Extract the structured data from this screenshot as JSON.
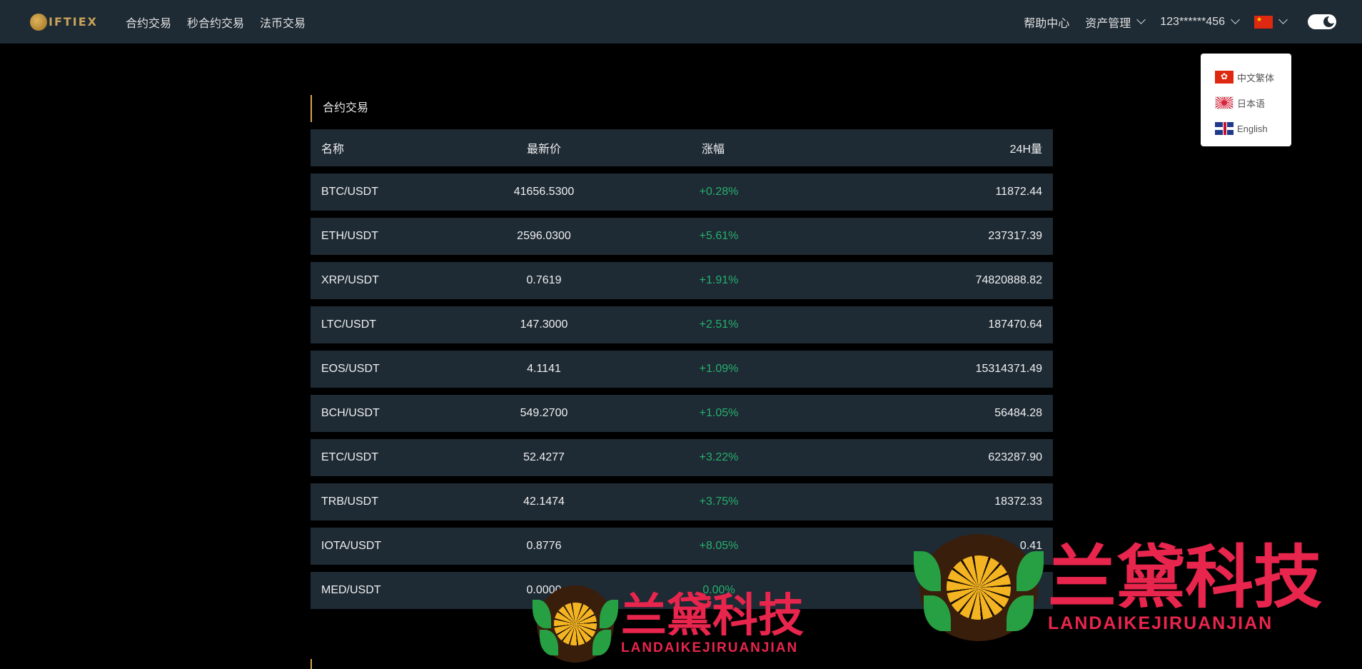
{
  "nav": {
    "logo_text": "IFTIEX",
    "links": [
      "合约交易",
      "秒合约交易",
      "法币交易"
    ],
    "help": "帮助中心",
    "assets": "资产管理",
    "account": "123******456"
  },
  "lang_menu": {
    "items": [
      "中文繁体",
      "日本语",
      "English"
    ]
  },
  "section": {
    "title": "合约交易"
  },
  "table": {
    "headers": [
      "名称",
      "最新价",
      "涨幅",
      "24H量"
    ],
    "rows": [
      [
        "BTC/USDT",
        "41656.5300",
        "+0.28%",
        "11872.44"
      ],
      [
        "ETH/USDT",
        "2596.0300",
        "+5.61%",
        "237317.39"
      ],
      [
        "XRP/USDT",
        "0.7619",
        "+1.91%",
        "74820888.82"
      ],
      [
        "LTC/USDT",
        "147.3000",
        "+2.51%",
        "187470.64"
      ],
      [
        "EOS/USDT",
        "4.1141",
        "+1.09%",
        "15314371.49"
      ],
      [
        "BCH/USDT",
        "549.2700",
        "+1.05%",
        "56484.28"
      ],
      [
        "ETC/USDT",
        "52.4277",
        "+3.22%",
        "623287.90"
      ],
      [
        "TRB/USDT",
        "42.1474",
        "+3.75%",
        "18372.33"
      ],
      [
        "IOTA/USDT",
        "0.8776",
        "+8.05%",
        "3628__0.41"
      ],
      [
        "MED/USDT",
        "0.0000",
        "0.00%",
        ""
      ]
    ]
  },
  "watermark": {
    "cn": "兰黛科技",
    "en": "LANDAIKEJIRUANJIAN"
  },
  "colors": {
    "navbar_bg": "#1e2a34",
    "row_bg": "#1e2a34",
    "positive": "#27b06e",
    "accent": "#d8a24a",
    "watermark": "#e8254d"
  }
}
